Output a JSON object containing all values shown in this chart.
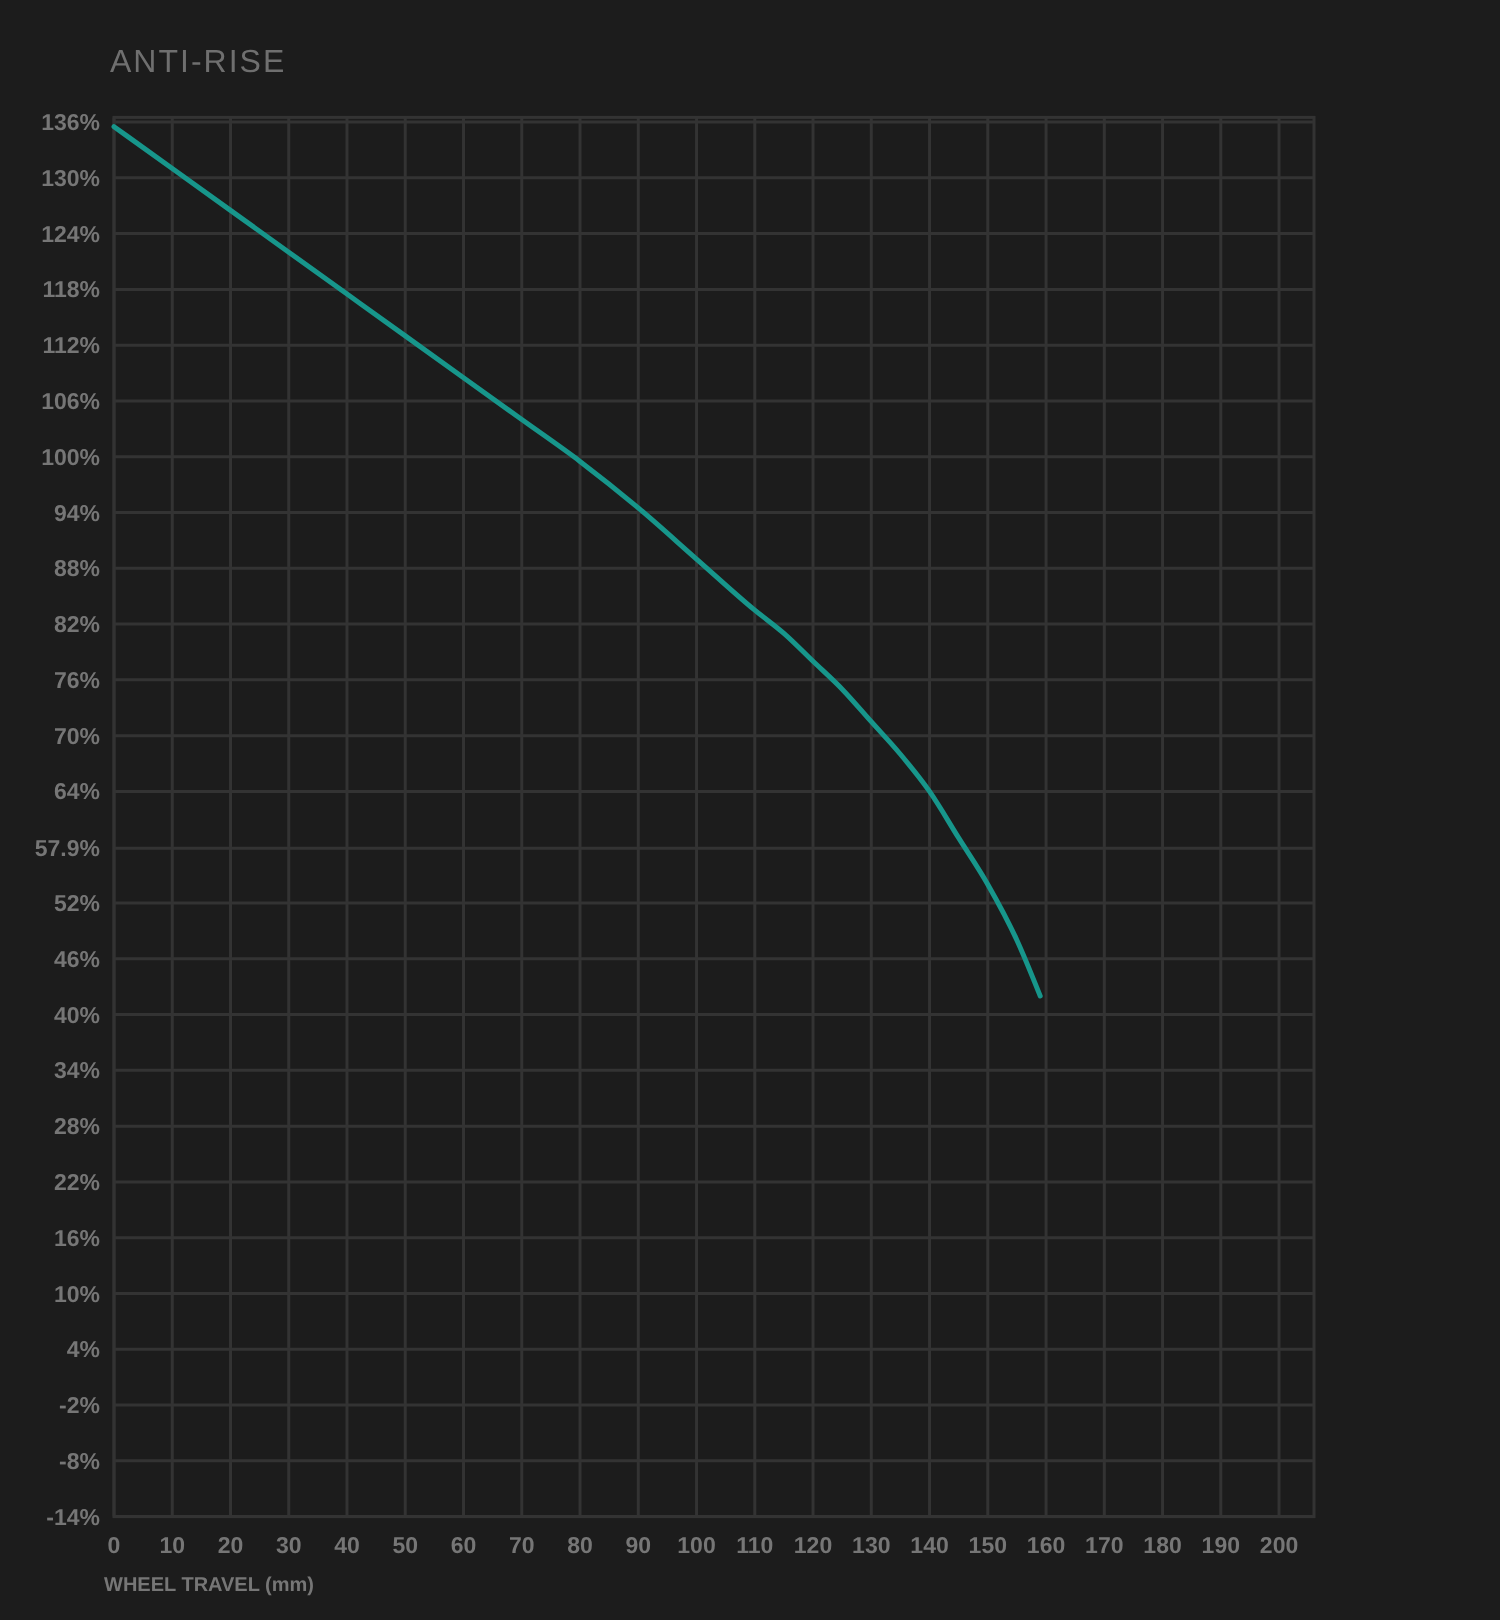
{
  "chart_data": {
    "type": "line",
    "title": "ANTI-RISE",
    "xlabel": "WHEEL TRAVEL (mm)",
    "x": [
      0,
      10,
      20,
      30,
      40,
      50,
      60,
      70,
      80,
      90,
      100,
      110,
      115,
      120,
      125,
      130,
      135,
      140,
      145,
      150,
      155,
      159
    ],
    "series": [
      {
        "color": "#17968b",
        "values": [
          135.5,
          131,
          126.5,
          122,
          117.5,
          113,
          108.5,
          104,
          99.5,
          94.5,
          89,
          83.5,
          81,
          78,
          75,
          71.5,
          68,
          64,
          59,
          54,
          48,
          42
        ]
      }
    ],
    "xlim": [
      0,
      206
    ],
    "xticks": [
      0,
      10,
      20,
      30,
      40,
      50,
      60,
      70,
      80,
      90,
      100,
      110,
      120,
      130,
      140,
      150,
      160,
      170,
      180,
      190,
      200
    ],
    "ylim": [
      -14,
      136.5
    ],
    "yticks": [
      {
        "value": 136,
        "label": "136%"
      },
      {
        "value": 130,
        "label": "130%"
      },
      {
        "value": 124,
        "label": "124%"
      },
      {
        "value": 118,
        "label": "118%"
      },
      {
        "value": 112,
        "label": "112%"
      },
      {
        "value": 106,
        "label": "106%"
      },
      {
        "value": 100,
        "label": "100%"
      },
      {
        "value": 94,
        "label": "94%"
      },
      {
        "value": 88,
        "label": "88%"
      },
      {
        "value": 82,
        "label": "82%"
      },
      {
        "value": 76,
        "label": "76%"
      },
      {
        "value": 70,
        "label": "70%"
      },
      {
        "value": 64,
        "label": "64%"
      },
      {
        "value": 57.9,
        "label": "57.9%"
      },
      {
        "value": 52,
        "label": "52%"
      },
      {
        "value": 46,
        "label": "46%"
      },
      {
        "value": 40,
        "label": "40%"
      },
      {
        "value": 34,
        "label": "34%"
      },
      {
        "value": 28,
        "label": "28%"
      },
      {
        "value": 22,
        "label": "22%"
      },
      {
        "value": 16,
        "label": "16%"
      },
      {
        "value": 10,
        "label": "10%"
      },
      {
        "value": 4,
        "label": "4%"
      },
      {
        "value": -2,
        "label": "-2%"
      },
      {
        "value": -8,
        "label": "-8%"
      },
      {
        "value": -14,
        "label": "-14%"
      }
    ],
    "grid": true
  }
}
